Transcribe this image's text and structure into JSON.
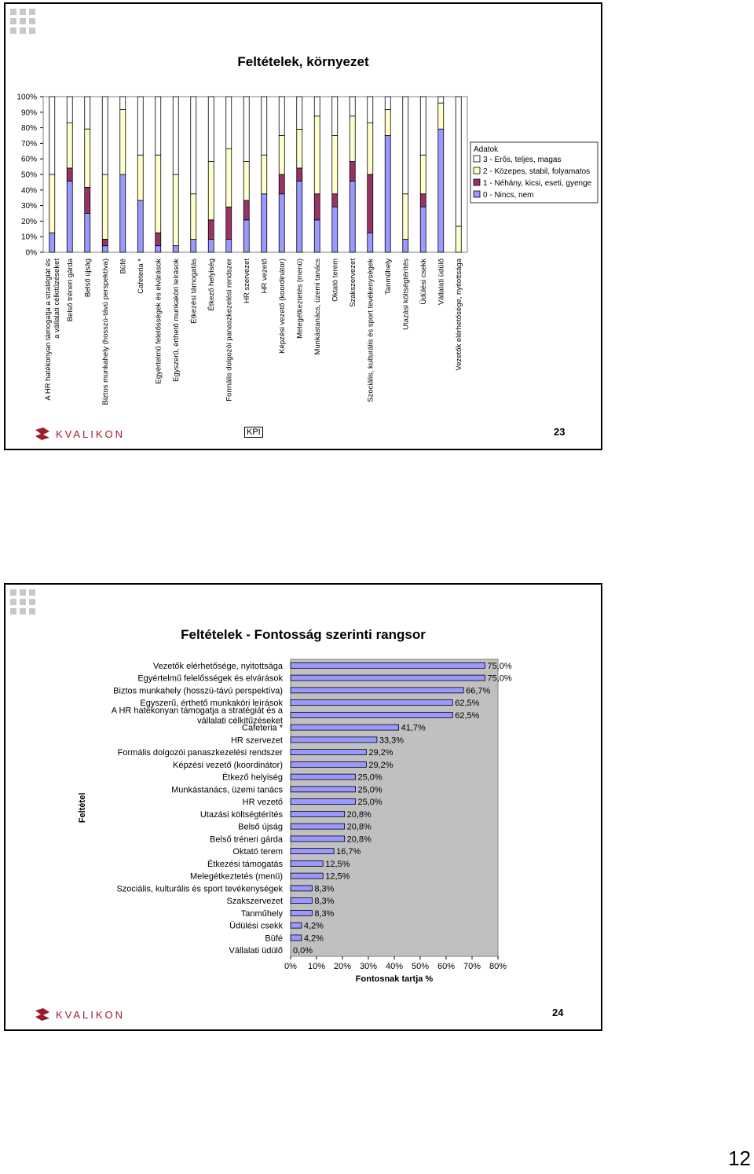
{
  "slide1": {
    "title": "Feltételek, környezet",
    "kpi_label": "KPI",
    "page_number": "23",
    "logo_text": "KVALIKON"
  },
  "slide2": {
    "title": "Feltételek - Fontosság szerinti rangsor",
    "page_number": "24",
    "logo_text": "KVALIKON"
  },
  "outer_page_number": "12",
  "colors": {
    "fill": "#9999ff",
    "dark": "#993366",
    "light": "#ffffcc",
    "white": "#ffffff",
    "plot_bg": "#c0c0c0"
  },
  "chart_data": [
    {
      "type": "bar",
      "stacked": true,
      "title": "Feltételek, környezet",
      "ylim": [
        0,
        100
      ],
      "yticks": [
        "0%",
        "10%",
        "20%",
        "30%",
        "40%",
        "50%",
        "60%",
        "70%",
        "80%",
        "90%",
        "100%"
      ],
      "legend_title": "Adatok",
      "legend_position": "right",
      "categories": [
        [
          "A HR hatékonyan támogatja a stratégiát és",
          "a vállalati célkitűzéseket"
        ],
        [
          "Belső tréneri gárda"
        ],
        [
          "Belső újság"
        ],
        [
          "Biztos munkahely (hosszú-távú perspektíva)"
        ],
        [
          "Büfé"
        ],
        [
          "Cafeteria *"
        ],
        [
          "Egyértelmű felelősségek és elvárások"
        ],
        [
          "Egyszerű, érthető munkaköri leírások"
        ],
        [
          "Étkezési támogatás"
        ],
        [
          "Étkező helyiség"
        ],
        [
          "Formális dolgozói panaszkezelési rendszer"
        ],
        [
          "HR szervezet"
        ],
        [
          "HR vezető"
        ],
        [
          "Képzési vezető (koordinátor)"
        ],
        [
          "Melegétkeztetés (menü)"
        ],
        [
          "Munkástanács, üzemi tanács"
        ],
        [
          "Oktató terem"
        ],
        [
          "Szakszervezet"
        ],
        [
          "Szociális, kulturális és sport tevékenységek"
        ],
        [
          "Tanműhely"
        ],
        [
          "Utazási költségtérítés"
        ],
        [
          "Üdülési csekk"
        ],
        [
          "Vállalati üdülő"
        ],
        [
          "Vezetők elérhetősége, nyitottsága"
        ]
      ],
      "series": [
        {
          "name": "0 - Nincs, nem",
          "color": "#9999ff",
          "values": [
            12.5,
            45.8,
            25,
            4.2,
            50,
            33.3,
            4.2,
            4.2,
            8.3,
            8.3,
            8.3,
            20.8,
            37.5,
            37.5,
            45.8,
            20.8,
            29.2,
            45.8,
            12.5,
            75,
            8.3,
            29.2,
            79.2,
            0
          ]
        },
        {
          "name": "1 - Néhány, kicsi, eseti, gyenge",
          "color": "#993366",
          "values": [
            0,
            8.3,
            16.7,
            4.2,
            0,
            0,
            8.3,
            0,
            0,
            12.5,
            20.8,
            12.5,
            0,
            12.5,
            8.3,
            16.7,
            8.3,
            12.5,
            37.5,
            0,
            0,
            8.3,
            0,
            0
          ]
        },
        {
          "name": "2 - Közepes, stabil, folyamatos",
          "color": "#ffffcc",
          "values": [
            37.5,
            29.2,
            37.5,
            41.6,
            41.7,
            29.2,
            50,
            45.8,
            29.2,
            37.5,
            37.5,
            25,
            25,
            25,
            25,
            50,
            37.5,
            29.2,
            33.3,
            16.7,
            29.2,
            25,
            16.7,
            16.7
          ]
        },
        {
          "name": "3 - Erős, teljes, magas",
          "color": "#ffffff",
          "values": [
            50,
            16.7,
            20.8,
            50,
            8.3,
            37.5,
            37.5,
            50,
            62.5,
            41.7,
            33.4,
            41.7,
            37.5,
            25,
            20.9,
            12.5,
            25,
            12.5,
            16.7,
            8.3,
            62.5,
            37.5,
            4.1,
            83.3
          ]
        }
      ]
    },
    {
      "type": "bar",
      "orientation": "horizontal",
      "title": "Feltételek - Fontosság szerinti rangsor",
      "xlabel": "Fontosnak tartja %",
      "ylabel": "Feltétel",
      "xlim": [
        0,
        80
      ],
      "xticks": [
        "0%",
        "10%",
        "20%",
        "30%",
        "40%",
        "50%",
        "60%",
        "70%",
        "80%"
      ],
      "categories": [
        [
          "Vezetők elérhetősége, nyitottsága"
        ],
        [
          "Egyértelmű felelősségek és elvárások"
        ],
        [
          "Biztos munkahely (hosszú-távú perspektíva)"
        ],
        [
          "Egyszerű, érthető munkaköri leírások"
        ],
        [
          "A HR hatékonyan támogatja a stratégiát és a",
          "vállalati célkitűzéseket"
        ],
        [
          "Cafeteria *"
        ],
        [
          "HR szervezet"
        ],
        [
          "Formális dolgozói panaszkezelési rendszer"
        ],
        [
          "Képzési vezető (koordinátor)"
        ],
        [
          "Étkező helyiség"
        ],
        [
          "Munkástanács, üzemi tanács"
        ],
        [
          "HR vezető"
        ],
        [
          "Utazási költségtérítés"
        ],
        [
          "Belső újság"
        ],
        [
          "Belső tréneri gárda"
        ],
        [
          "Oktató terem"
        ],
        [
          "Étkezési támogatás"
        ],
        [
          "Melegétkeztetés (menü)"
        ],
        [
          "Szociális, kulturális és sport tevékenységek"
        ],
        [
          "Szakszervezet"
        ],
        [
          "Tanműhely"
        ],
        [
          "Üdülési csekk"
        ],
        [
          "Büfé"
        ],
        [
          "Vállalati üdülő"
        ]
      ],
      "values": [
        75,
        75,
        66.7,
        62.5,
        62.5,
        41.7,
        33.3,
        29.2,
        29.2,
        25,
        25,
        25,
        20.8,
        20.8,
        20.8,
        16.7,
        12.5,
        12.5,
        8.3,
        8.3,
        8.3,
        4.2,
        4.2,
        0
      ],
      "value_labels": [
        "75,0%",
        "75,0%",
        "66,7%",
        "62,5%",
        "62,5%",
        "41,7%",
        "33,3%",
        "29,2%",
        "29,2%",
        "25,0%",
        "25,0%",
        "25,0%",
        "20,8%",
        "20,8%",
        "20,8%",
        "16,7%",
        "12,5%",
        "12,5%",
        "8,3%",
        "8,3%",
        "8,3%",
        "4,2%",
        "4,2%",
        "0,0%"
      ]
    }
  ]
}
